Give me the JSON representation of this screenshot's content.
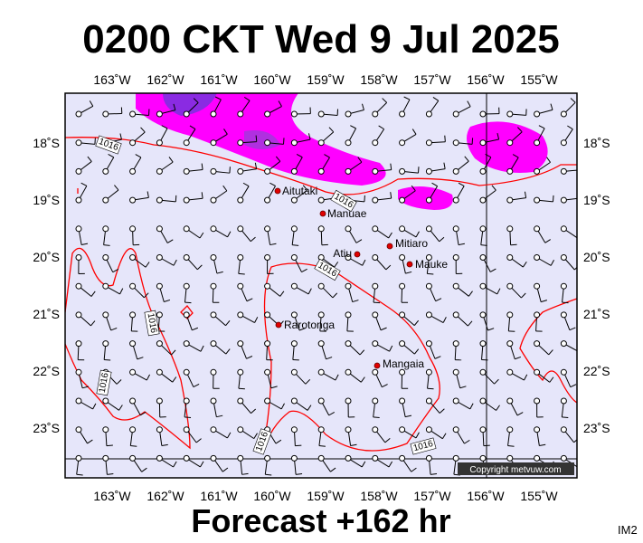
{
  "header": {
    "title": "0200 CKT Wed 9 Jul 2025"
  },
  "map": {
    "lon_labels": [
      "163˚W",
      "162˚W",
      "161˚W",
      "160˚W",
      "159˚W",
      "158˚W",
      "157˚W",
      "156˚W",
      "155˚W"
    ],
    "lat_labels": [
      "18˚S",
      "19˚S",
      "20˚S",
      "21˚S",
      "22˚S",
      "23˚S"
    ],
    "places": [
      {
        "name": "Aitutaki"
      },
      {
        "name": "Manuae"
      },
      {
        "name": "Atiu"
      },
      {
        "name": "Mitiaro"
      },
      {
        "name": "Mauke"
      },
      {
        "name": "Rarotonga"
      },
      {
        "name": "Mangaia"
      }
    ],
    "isobar_labels": [
      "1016",
      "1016",
      "1016",
      "1016",
      "1016",
      "1016",
      "1016"
    ],
    "copyright": "Copyright metvuw.com"
  },
  "footer": {
    "forecast": "Forecast +162 hr",
    "code": "IM2"
  }
}
